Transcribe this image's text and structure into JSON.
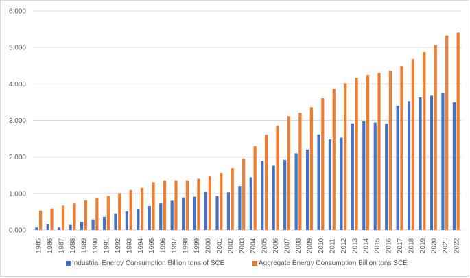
{
  "colors": {
    "industrial": "#4472c4",
    "aggregate": "#ed7d31",
    "gridline": "#d9d9d9",
    "axis_text": "#595959"
  },
  "chart_data": {
    "type": "bar",
    "title": "",
    "xlabel": "",
    "ylabel": "",
    "ylim": [
      0,
      6
    ],
    "yticks": [
      "0.000",
      "1.000",
      "2.000",
      "3.000",
      "4.000",
      "5.000",
      "6.000"
    ],
    "grid": true,
    "legend_position": "bottom",
    "categories": [
      "1985",
      "1986",
      "1987",
      "1988",
      "1989",
      "1990",
      "1991",
      "1992",
      "1993",
      "1994",
      "1995",
      "1996",
      "1997",
      "1998",
      "1999",
      "2000",
      "2001",
      "2002",
      "2003",
      "2004",
      "2005",
      "2006",
      "2007",
      "2008",
      "2009",
      "2010",
      "2011",
      "2012",
      "2013",
      "2014",
      "2015",
      "2016",
      "2017",
      "2018",
      "2019",
      "2020",
      "2021",
      "2022"
    ],
    "series": [
      {
        "name": "Industrial Energy Consumption Billion tons of SCE",
        "values": [
          0.07,
          0.15,
          0.07,
          0.14,
          0.22,
          0.29,
          0.36,
          0.44,
          0.51,
          0.58,
          0.66,
          0.73,
          0.8,
          0.89,
          0.91,
          1.04,
          0.93,
          1.03,
          1.2,
          1.44,
          1.89,
          1.76,
          1.92,
          2.1,
          2.2,
          2.62,
          2.48,
          2.53,
          2.92,
          2.97,
          2.94,
          2.91,
          3.4,
          3.53,
          3.63,
          3.68,
          3.75,
          3.5
        ]
      },
      {
        "name": "Aggregate Energy Consumption Billion tons SCE",
        "values": [
          0.53,
          0.59,
          0.67,
          0.73,
          0.81,
          0.88,
          0.93,
          1.01,
          1.09,
          1.15,
          1.31,
          1.36,
          1.36,
          1.36,
          1.4,
          1.47,
          1.56,
          1.69,
          1.96,
          2.3,
          2.61,
          2.86,
          3.12,
          3.21,
          3.36,
          3.61,
          3.87,
          4.02,
          4.17,
          4.25,
          4.3,
          4.36,
          4.49,
          4.68,
          4.87,
          5.06,
          5.33,
          5.41
        ]
      }
    ]
  }
}
